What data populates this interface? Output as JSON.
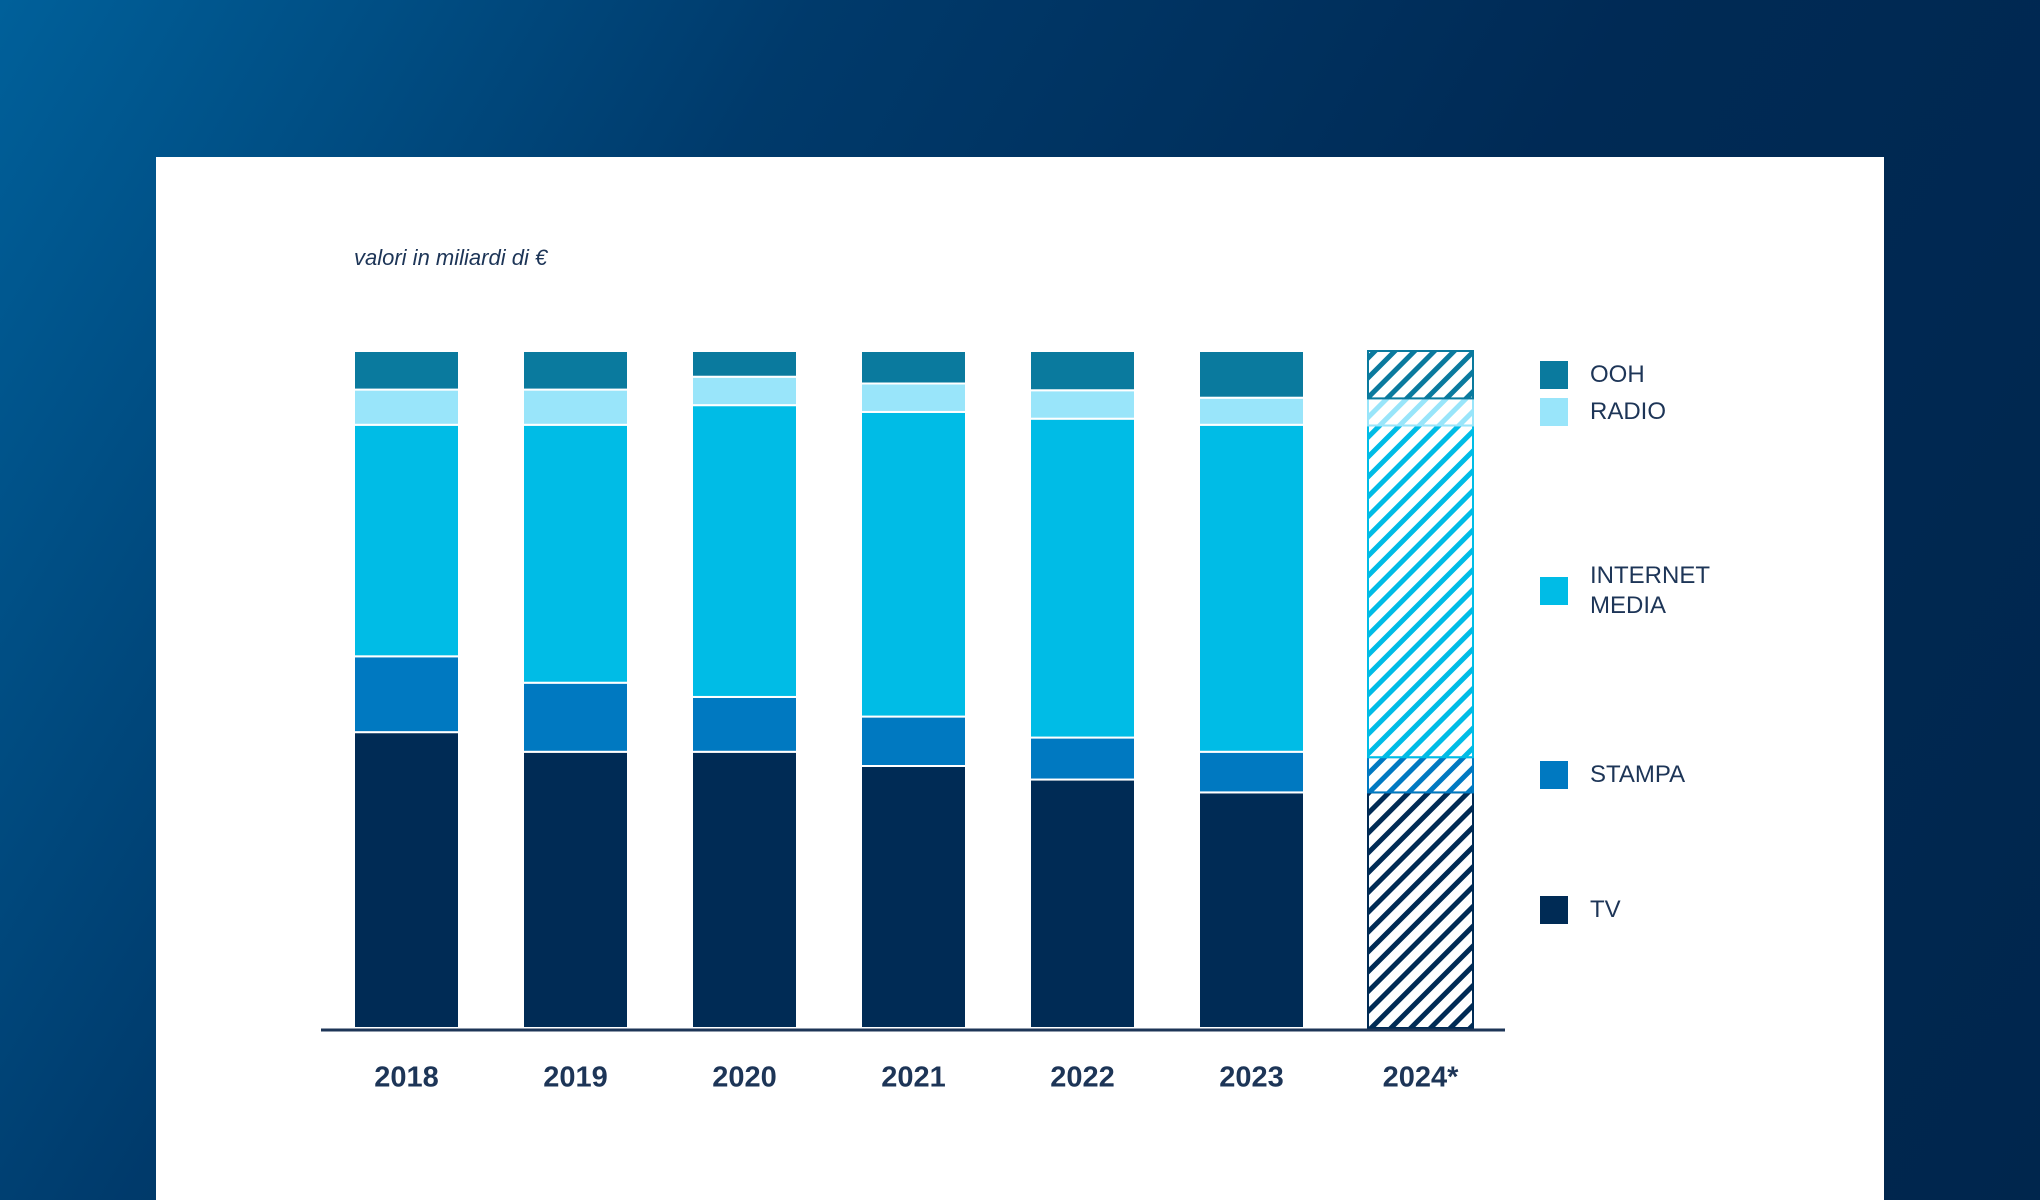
{
  "chart_data": {
    "type": "stacked_bar",
    "subtitle": "valori in miliardi di €",
    "categories": [
      "2018",
      "2019",
      "2020",
      "2021",
      "2022",
      "2023",
      "2024*"
    ],
    "series": [
      {
        "name": "TV",
        "color": "#002b55",
        "values": [
          43.7,
          40.8,
          40.8,
          38.7,
          36.7,
          34.8,
          34.8
        ]
      },
      {
        "name": "STAMPA",
        "color": "#0079c1",
        "values": [
          11.2,
          10.2,
          8.1,
          7.3,
          6.2,
          6.0,
          5.2
        ]
      },
      {
        "name": "INTERNET MEDIA",
        "color": "#00bce6",
        "values": [
          34.2,
          38.1,
          43.1,
          45.0,
          47.1,
          48.3,
          49.0
        ]
      },
      {
        "name": "RADIO",
        "color": "#99e5fa",
        "values": [
          5.2,
          5.2,
          4.2,
          4.2,
          4.2,
          4.0,
          4.0
        ]
      },
      {
        "name": "OOH",
        "color": "#0a7a9e",
        "values": [
          5.7,
          5.7,
          3.8,
          4.8,
          5.8,
          6.9,
          7.0
        ]
      }
    ],
    "ylim": [
      0,
      100
    ],
    "hatch_last": true,
    "legend": "right"
  }
}
